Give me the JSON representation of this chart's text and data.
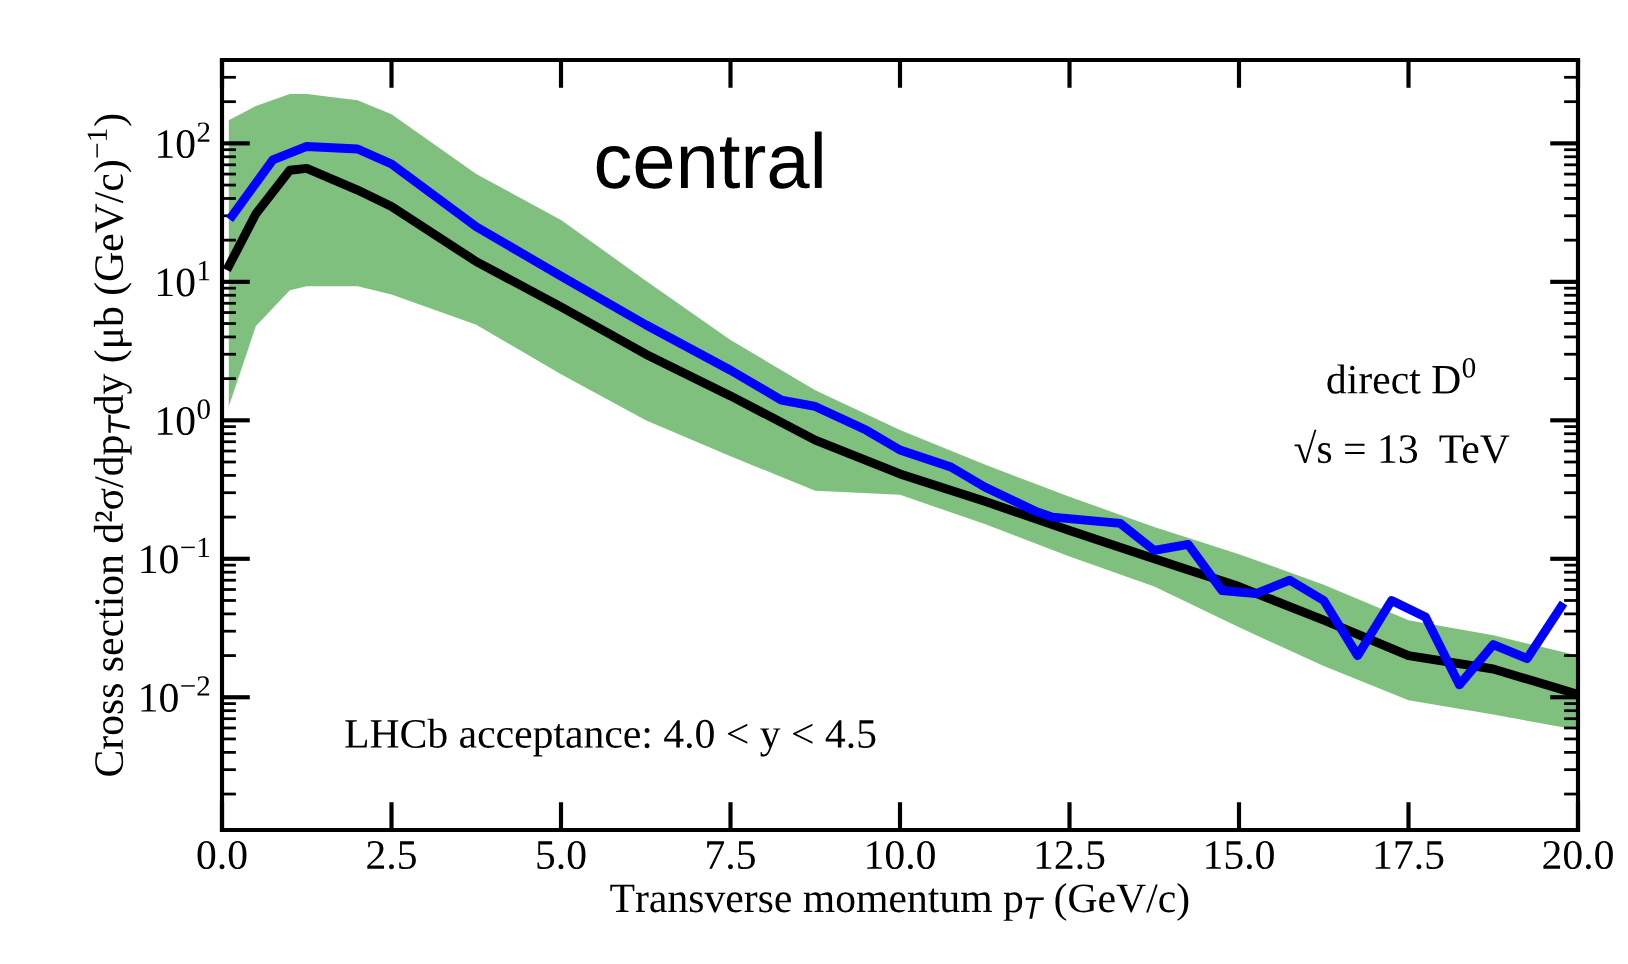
{
  "chart_data": {
    "type": "line",
    "xlabel": "Transverse momentum p$_{T}$ (GeV/c)",
    "ylabel": "Cross section d²σ/dp$_{T}$dy (μb (GeV/c)$^{−1}$)",
    "log": "y",
    "grid": false,
    "legend": false,
    "marker": "none",
    "line_style": "solid",
    "xlim": [
      0,
      20
    ],
    "ylim": [
      0.0011,
      400
    ],
    "xticks": [
      {
        "value": 0,
        "label": "0.0"
      },
      {
        "value": 2.5,
        "label": "2.5"
      },
      {
        "value": 5,
        "label": "5.0"
      },
      {
        "value": 7.5,
        "label": "7.5"
      },
      {
        "value": 10,
        "label": "10.0"
      },
      {
        "value": 12.5,
        "label": "12.5"
      },
      {
        "value": 15,
        "label": "15.0"
      },
      {
        "value": 17.5,
        "label": "17.5"
      },
      {
        "value": 20,
        "label": "20.0"
      }
    ],
    "yticks": [
      {
        "value": 0.01,
        "label": "10$^{−2}$"
      },
      {
        "value": 0.1,
        "label": "10$^{−1}$"
      },
      {
        "value": 1,
        "label": "10$^{0}$"
      },
      {
        "value": 10,
        "label": "10$^{1}$"
      },
      {
        "value": 100,
        "label": "10$^{2}$"
      }
    ],
    "annotations": [
      "central",
      "direct D$^{0}$",
      "√s = 13  TeV",
      "LHCb acceptance: 4.0 < y < 4.5"
    ],
    "series": [
      {
        "color": "#000000",
        "x": [
          0.1,
          0.5,
          1.0,
          1.25,
          2.0,
          2.5,
          3.75,
          5,
          6.25,
          7.5,
          8.75,
          10,
          11.25,
          12.5,
          13.75,
          15,
          16.25,
          17.5,
          18.75,
          20
        ],
        "lower": [
          1.26,
          4.8,
          8.7,
          9.3,
          9.3,
          8.1,
          4.9,
          2.15,
          1.0,
          0.55,
          0.31,
          0.29,
          0.178,
          0.104,
          0.063,
          0.032,
          0.0168,
          0.0095,
          0.0075,
          0.0058
        ],
        "upper": [
          147,
          186,
          227,
          227,
          205,
          162,
          60,
          28,
          10.2,
          3.8,
          1.65,
          0.85,
          0.48,
          0.28,
          0.17,
          0.108,
          0.065,
          0.036,
          0.028,
          0.02
        ],
        "values": [
          13,
          31,
          64,
          66,
          46,
          35,
          14,
          6.6,
          3.0,
          1.5,
          0.72,
          0.41,
          0.26,
          0.16,
          0.1,
          0.063,
          0.036,
          0.02,
          0.016,
          0.0105
        ]
      },
      {
        "color": "#0000ff",
        "x": [
          0.15,
          0.75,
          1.25,
          2.0,
          2.5,
          3.75,
          5,
          6.25,
          7.5,
          8.25,
          8.75,
          9.5,
          10,
          10.75,
          11.25,
          12,
          12.25,
          13.25,
          13.75,
          14.25,
          14.75,
          15.25,
          15.75,
          16.25,
          16.75,
          17.25,
          17.75,
          18.25,
          18.75,
          19.25,
          19.75
        ],
        "values": [
          30,
          76,
          95,
          91,
          71,
          25,
          11,
          4.9,
          2.3,
          1.4,
          1.26,
          0.85,
          0.61,
          0.46,
          0.33,
          0.22,
          0.2,
          0.18,
          0.115,
          0.127,
          0.059,
          0.056,
          0.07,
          0.05,
          0.02,
          0.05,
          0.038,
          0.0123,
          0.024,
          0.019,
          0.045
        ]
      }
    ]
  }
}
